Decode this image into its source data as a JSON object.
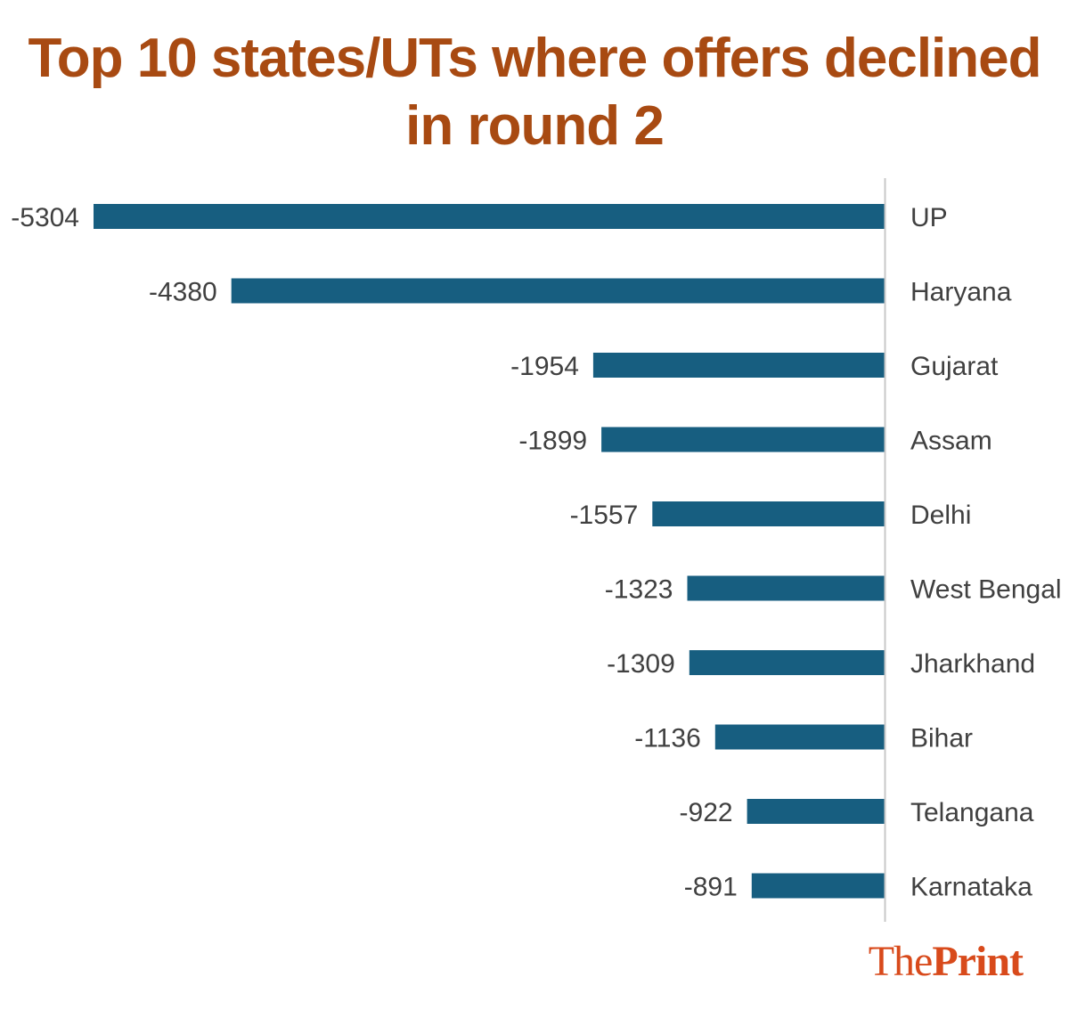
{
  "title_lines": [
    "Top 10 states/UTs where offers declined",
    "in round 2"
  ],
  "chart_data": {
    "type": "bar",
    "orientation": "horizontal",
    "title": "Top 10 states/UTs where offers declined in round 2",
    "categories": [
      "UP",
      "Haryana",
      "Gujarat",
      "Assam",
      "Delhi",
      "West Bengal",
      "Jharkhand",
      "Bihar",
      "Telangana",
      "Karnataka"
    ],
    "values": [
      -5304,
      -4380,
      -1954,
      -1899,
      -1557,
      -1323,
      -1309,
      -1136,
      -922,
      -891
    ],
    "data_labels": [
      "-5304",
      "-4380",
      "-1954",
      "-1899",
      "-1557",
      "-1323",
      "-1309",
      "-1136",
      "-922",
      "-891"
    ],
    "xlim": [
      -5304,
      0
    ],
    "bar_color": "#175e80",
    "grid": false,
    "legend": "none"
  },
  "brand": {
    "part1": "The",
    "part2": "Print"
  },
  "colors": {
    "title": "#a84a12",
    "bar": "#175e80",
    "axis": "#c8c8c8",
    "text": "#404040",
    "brand": "#d84a1b"
  }
}
